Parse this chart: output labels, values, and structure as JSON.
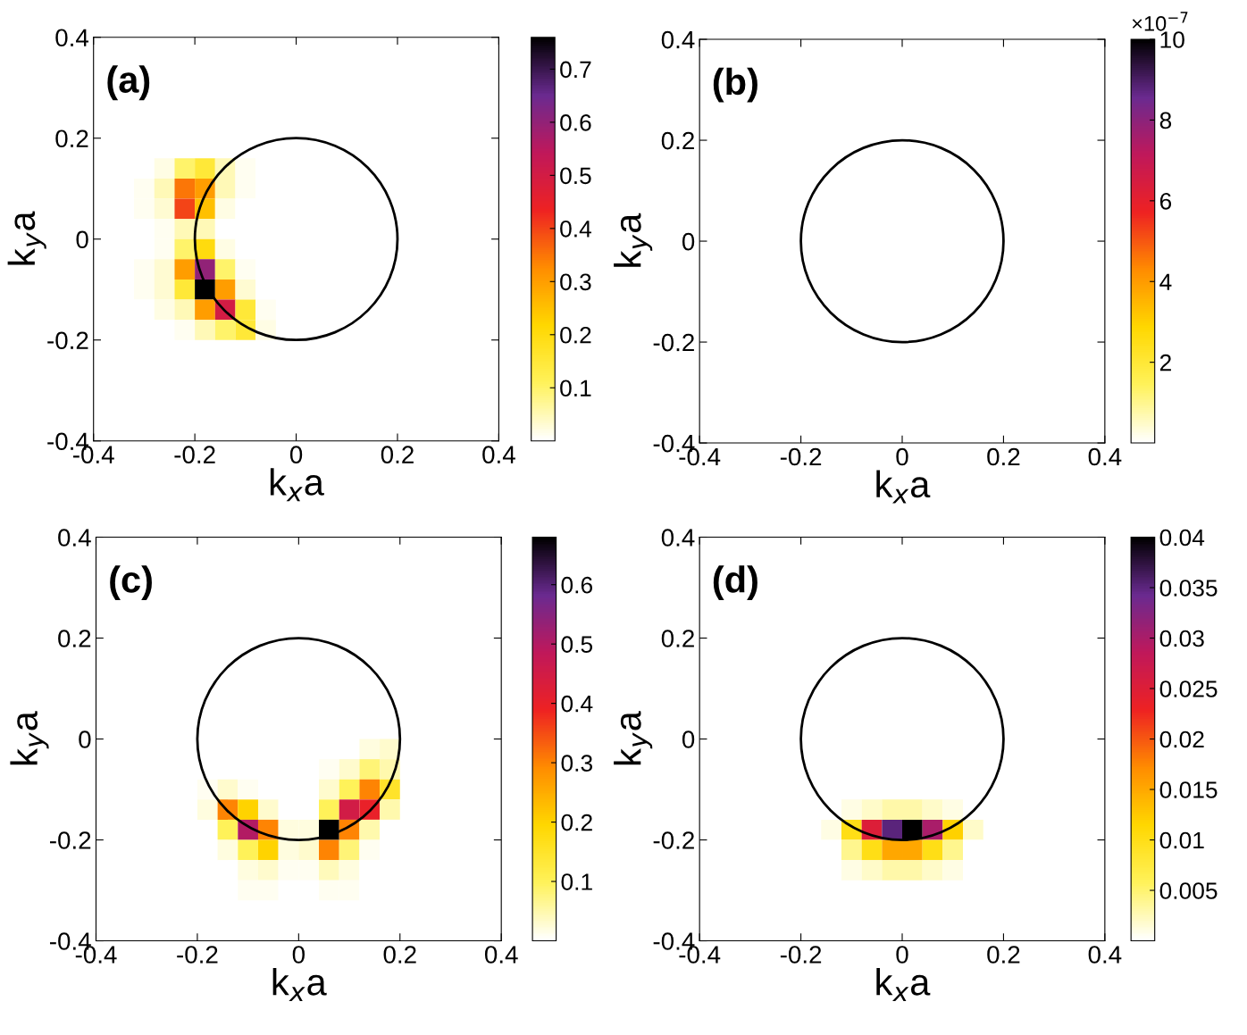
{
  "chart_data": [
    {
      "type": "heatmap",
      "xlabel": "k$_{x}$a",
      "ylabel": "k$_{y}$a",
      "annotations": [
        "(a)"
      ],
      "xlim": [
        -0.4,
        0.4
      ],
      "ylim": [
        -0.4,
        0.4
      ],
      "xticks": [
        -0.4,
        -0.2,
        0,
        0.2,
        0.4
      ],
      "yticks": [
        -0.4,
        -0.2,
        0,
        0.2,
        0.4
      ],
      "x": [
        -0.3,
        -0.26,
        -0.22,
        -0.18,
        -0.14,
        -0.1,
        -0.06
      ],
      "y": [
        0.14,
        0.1,
        0.06,
        0.02,
        -0.02,
        -0.06,
        -0.1,
        -0.14,
        -0.18
      ],
      "cells": [
        [
          0,
          0.02,
          0.1,
          0.15,
          0.05,
          0.01,
          0
        ],
        [
          0.01,
          0.05,
          0.35,
          0.3,
          0.05,
          0.01,
          0
        ],
        [
          0.01,
          0.03,
          0.4,
          0.25,
          0.02,
          0,
          0
        ],
        [
          0,
          0.01,
          0.05,
          0.05,
          0,
          0,
          0
        ],
        [
          0,
          0.01,
          0.1,
          0.2,
          0.02,
          0,
          0
        ],
        [
          0.01,
          0.03,
          0.3,
          0.6,
          0.1,
          0.01,
          0
        ],
        [
          0.01,
          0.03,
          0.15,
          0.76,
          0.3,
          0.03,
          0
        ],
        [
          0,
          0.02,
          0.05,
          0.3,
          0.5,
          0.15,
          0.01
        ],
        [
          0,
          0,
          0.01,
          0.05,
          0.1,
          0.15,
          0.02
        ]
      ],
      "clim": [
        0,
        0.76
      ],
      "cticks": [
        0.1,
        0.2,
        0.3,
        0.4,
        0.5,
        0.6,
        0.7
      ]
    },
    {
      "type": "heatmap",
      "xlabel": "k$_{x}$a",
      "ylabel": "k$_{y}$a",
      "annotations": [
        "(b)"
      ],
      "clabel": "×10$^{−7}$",
      "xlim": [
        -0.4,
        0.4
      ],
      "ylim": [
        -0.4,
        0.4
      ],
      "xticks": [
        -0.4,
        -0.2,
        0,
        0.2,
        0.4
      ],
      "yticks": [
        -0.4,
        -0.2,
        0,
        0.2,
        0.4
      ],
      "clim": [
        0,
        10
      ],
      "cticks": [
        2,
        4,
        6,
        8,
        10
      ]
    },
    {
      "type": "heatmap",
      "xlabel": "k$_{x}$a",
      "ylabel": "k$_{y}$a",
      "annotations": [
        "(c)"
      ],
      "xlim": [
        -0.4,
        0.4
      ],
      "ylim": [
        -0.4,
        0.4
      ],
      "xticks": [
        -0.4,
        -0.2,
        0,
        0.2,
        0.4
      ],
      "yticks": [
        -0.4,
        -0.2,
        0,
        0.2,
        0.4
      ],
      "x": [
        -0.18,
        -0.14,
        -0.1,
        -0.06,
        -0.02,
        0.02,
        0.06,
        0.1,
        0.14,
        0.18
      ],
      "y": [
        -0.02,
        -0.06,
        -0.1,
        -0.14,
        -0.18,
        -0.22,
        -0.26,
        -0.3
      ],
      "cells": [
        [
          0,
          0,
          0,
          0,
          0,
          0,
          0,
          0,
          0.02,
          0.03
        ],
        [
          0,
          0,
          0,
          0,
          0,
          0,
          0.01,
          0.03,
          0.08,
          0.05
        ],
        [
          0.01,
          0.03,
          0.01,
          0,
          0,
          0,
          0.03,
          0.1,
          0.3,
          0.15
        ],
        [
          0.02,
          0.3,
          0.2,
          0.03,
          0,
          0,
          0.1,
          0.45,
          0.4,
          0.05
        ],
        [
          0,
          0.1,
          0.5,
          0.3,
          0.02,
          0.02,
          0.68,
          0.3,
          0.05,
          0
        ],
        [
          0,
          0.02,
          0.1,
          0.2,
          0.02,
          0.03,
          0.3,
          0.08,
          0.01,
          0
        ],
        [
          0,
          0,
          0.02,
          0.03,
          0.01,
          0.01,
          0.04,
          0.02,
          0,
          0
        ],
        [
          0,
          0,
          0.01,
          0.01,
          0,
          0,
          0.01,
          0.01,
          0,
          0
        ]
      ],
      "clim": [
        0,
        0.68
      ],
      "cticks": [
        0.1,
        0.2,
        0.3,
        0.4,
        0.5,
        0.6
      ]
    },
    {
      "type": "heatmap",
      "xlabel": "k$_{x}$a",
      "ylabel": "k$_{y}$a",
      "annotations": [
        "(d)"
      ],
      "xlim": [
        -0.4,
        0.4
      ],
      "ylim": [
        -0.4,
        0.4
      ],
      "xticks": [
        -0.4,
        -0.2,
        0,
        0.2,
        0.4
      ],
      "yticks": [
        -0.4,
        -0.2,
        0,
        0.2,
        0.4
      ],
      "x": [
        -0.14,
        -0.1,
        -0.06,
        -0.02,
        0.02,
        0.06,
        0.1,
        0.14
      ],
      "y": [
        -0.14,
        -0.18,
        -0.22,
        -0.26
      ],
      "cells": [
        [
          0,
          0.001,
          0.002,
          0.003,
          0.003,
          0.002,
          0.001,
          0
        ],
        [
          0.001,
          0.01,
          0.025,
          0.035,
          0.04,
          0.03,
          0.012,
          0.002
        ],
        [
          0,
          0.004,
          0.01,
          0.015,
          0.015,
          0.01,
          0.004,
          0
        ],
        [
          0,
          0.001,
          0.002,
          0.003,
          0.003,
          0.002,
          0.001,
          0
        ]
      ],
      "clim": [
        0,
        0.04
      ],
      "cticks": [
        0.005,
        0.01,
        0.015,
        0.02,
        0.025,
        0.03,
        0.035,
        0.04
      ]
    }
  ]
}
